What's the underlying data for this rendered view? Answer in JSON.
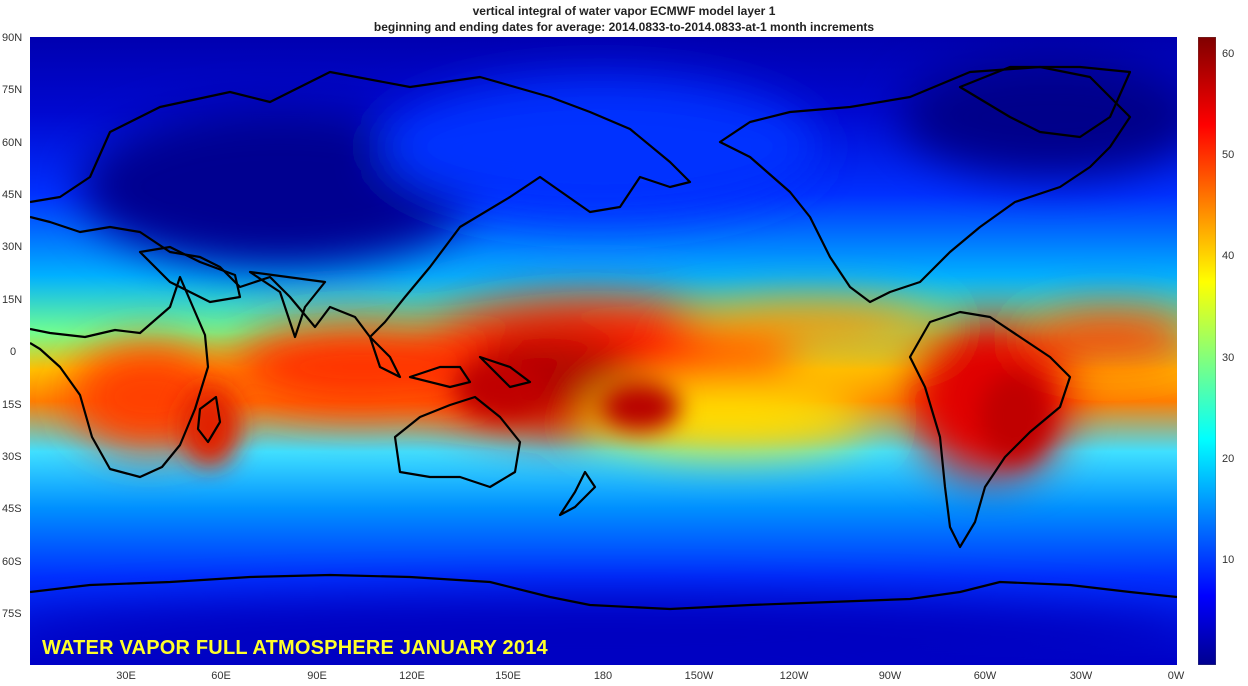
{
  "title_line1": "vertical integral of water vapor ECMWF model layer 1",
  "title_line2": "beginning and ending dates for average:  2014.0833-to-2014.0833-at-1 month increments",
  "overlay_label": "WATER VAPOR FULL ATMOSPHERE JANUARY 2014",
  "lat_labels": [
    "90N",
    "75N",
    "60N",
    "45N",
    "30N",
    "15N",
    "0",
    "15S",
    "30S",
    "45S",
    "60S",
    "75S"
  ],
  "lon_labels": [
    "30E",
    "60E",
    "90E",
    "120E",
    "150E",
    "180",
    "150W",
    "120W",
    "90W",
    "60W",
    "30W",
    "0W"
  ],
  "colorbar": {
    "ticks": [
      "60",
      "50",
      "40",
      "30",
      "20",
      "10"
    ],
    "tick_values": [
      60,
      50,
      40,
      30,
      20,
      10
    ],
    "min": 0,
    "max": 62,
    "colormap": "jet"
  },
  "chart_data": {
    "type": "heatmap",
    "title": "vertical integral of water vapor ECMWF model layer 1",
    "subtitle": "beginning and ending dates for average:  2014.0833-to-2014.0833-at-1 month increments",
    "projection": "equirectangular",
    "lon_range_east": [
      0,
      360
    ],
    "lat_range": [
      -90,
      90
    ],
    "value_range": [
      0,
      62
    ],
    "colormap": "jet",
    "features": {
      "max_region": "western Pacific warm pool ~150E-180, 5S, values near 60",
      "itcz_band": "continuous band near equator with values 40-55",
      "amazon_maximum": "~55 over South America 0-15S",
      "africa_maximum": "~50 over central/southern Africa",
      "polar_minimum": "values below 5 at high latitudes"
    }
  }
}
